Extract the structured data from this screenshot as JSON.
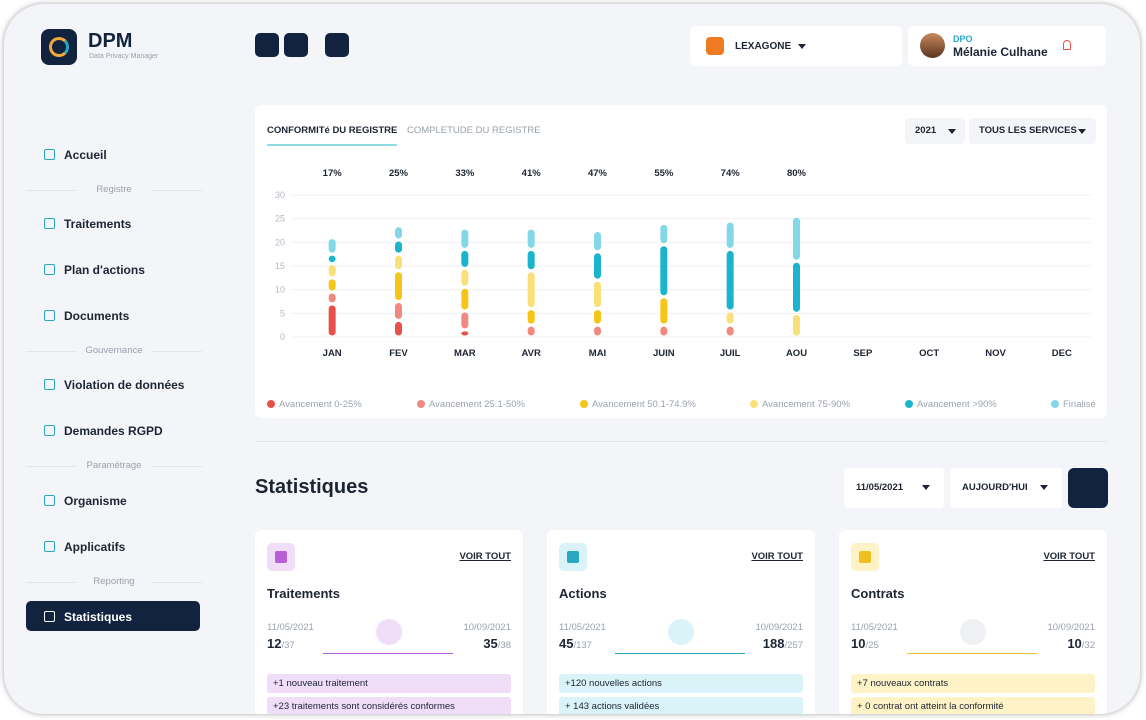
{
  "brand": {
    "name": "DPM",
    "tagline": "Data Privacy Manager"
  },
  "nav": [
    "Accueil",
    "Traitements",
    "Plan d'actions",
    "Documents",
    "Violation de données",
    "Demandes RGPD",
    "Organisme",
    "Applicatifs",
    "Statistiques"
  ],
  "sections": [
    "Registre",
    "Gouvernance",
    "Paramétrage",
    "Reporting"
  ],
  "topbar": {
    "organization": "LEXAGONE",
    "role": "DPO",
    "user": "Mélanie Culhane"
  },
  "chart_data": {
    "type": "bar",
    "stacked": true,
    "tabs": [
      "CONFORMITé DU REGISTRE",
      "COMPLETUDE DU REGISTRE"
    ],
    "filters": [
      "2021",
      "TOUS LES SERVICES"
    ],
    "categories": [
      "JAN",
      "FEV",
      "MAR",
      "AVR",
      "MAI",
      "JUIN",
      "JUIL",
      "AOU",
      "SEP",
      "OCT",
      "NOV",
      "DEC"
    ],
    "series": [
      {
        "name": "Avancement 0-25%",
        "color": "#e8514a",
        "values": [
          7,
          3.5,
          1.5,
          0,
          0,
          0,
          0,
          0,
          null,
          null,
          null,
          null
        ]
      },
      {
        "name": "Avancement 25.1-50%",
        "color": "#f0897f",
        "values": [
          2.5,
          4,
          4,
          2.5,
          2.5,
          2.5,
          2.5,
          0,
          null,
          null,
          null,
          null
        ]
      },
      {
        "name": "Avancement 50.1-74.9%",
        "color": "#f5c518",
        "values": [
          3,
          6.5,
          5,
          3.5,
          3.5,
          6,
          0,
          0,
          null,
          null,
          null,
          null
        ]
      },
      {
        "name": "Avancement 75-90%",
        "color": "#f9e07a",
        "values": [
          3,
          3.5,
          4,
          8,
          6,
          0,
          3,
          5,
          null,
          null,
          null,
          null
        ]
      },
      {
        "name": "Avancement >90%",
        "color": "#1ab4cc",
        "values": [
          2,
          3,
          4,
          4.5,
          6,
          11,
          13,
          11,
          null,
          null,
          null,
          null
        ]
      },
      {
        "name": "Finalisé",
        "color": "#82d8e6",
        "values": [
          3.5,
          3,
          4.5,
          4.5,
          4.5,
          4.5,
          6,
          9.5,
          null,
          null,
          null,
          null
        ]
      }
    ],
    "totals": {
      "values": [
        17,
        25,
        33,
        41,
        47,
        55,
        74,
        80,
        null,
        null,
        null,
        null
      ],
      "value_labels": [
        "17%",
        "25%",
        "33%",
        "41%",
        "47%",
        "55%",
        "74%",
        "80%",
        null,
        null,
        null,
        null
      ]
    },
    "ylim": [
      0,
      30
    ],
    "yticks": [
      0,
      5,
      10,
      15,
      20,
      25,
      30
    ],
    "grid": true,
    "legend": "bottom"
  },
  "statistics": {
    "title": "Statistiques",
    "filters": [
      "11/05/2021",
      "AUJOURD'HUI"
    ],
    "cards": [
      {
        "title": "Traitements",
        "link": "VOIR TOUT",
        "start_date": "11/05/2021",
        "start_value": "12",
        "start_total": "/37",
        "end_date": "10/09/2021",
        "end_value": "35",
        "end_total": "/38",
        "notes": [
          "+1 nouveau traitement",
          "+23 traitements sont considérés conformes"
        ]
      },
      {
        "title": "Actions",
        "link": "VOIR TOUT",
        "start_date": "11/05/2021",
        "start_value": "45",
        "start_total": "/137",
        "end_date": "10/09/2021",
        "end_value": "188",
        "end_total": "/257",
        "notes": [
          "+120 nouvelles actions",
          "+ 143 actions validées"
        ]
      },
      {
        "title": "Contrats",
        "link": "VOIR TOUT",
        "start_date": "11/05/2021",
        "start_value": "10",
        "start_total": "/25",
        "end_date": "10/09/2021",
        "end_value": "10",
        "end_total": "/32",
        "notes": [
          "+7 nouveaux contrats",
          "+ 0 contrat ont atteint la conformité"
        ]
      }
    ]
  }
}
